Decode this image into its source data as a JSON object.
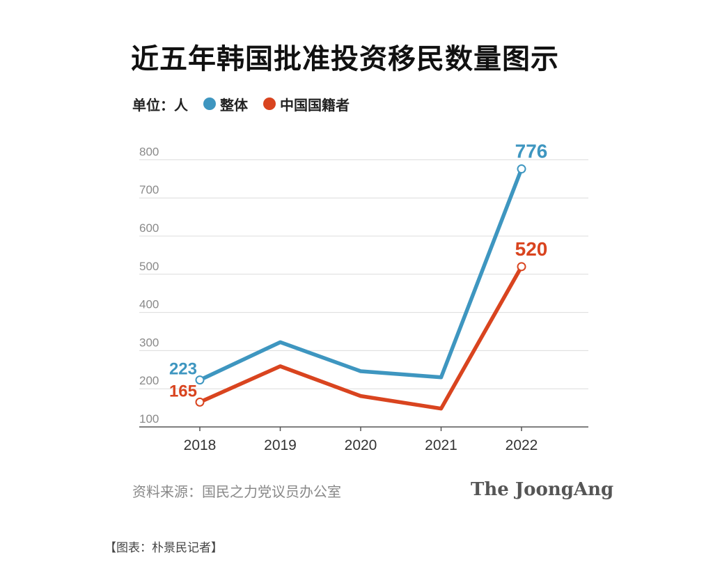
{
  "title": "近五年韩国批准投资移民数量图示",
  "legend": {
    "unit_label": "单位：人",
    "series": [
      {
        "name": "整体",
        "color": "#3e96c0"
      },
      {
        "name": "中国国籍者",
        "color": "#d9441f"
      }
    ]
  },
  "source": "资料来源：国民之力党议员办公室",
  "brand": "The JoongAng",
  "caption": "【图表：朴景民记者】",
  "chart_data": {
    "type": "line",
    "categories": [
      "2018",
      "2019",
      "2020",
      "2021",
      "2022"
    ],
    "y_ticks": [
      100,
      200,
      300,
      400,
      500,
      600,
      700,
      800
    ],
    "ylim": [
      100,
      830
    ],
    "grid": true,
    "series": [
      {
        "name": "整体",
        "color": "#3e96c0",
        "values": [
          223,
          322,
          246,
          230,
          776
        ],
        "labels": [
          "223",
          "",
          "",
          "",
          "776"
        ]
      },
      {
        "name": "中国国籍者",
        "color": "#d9441f",
        "values": [
          165,
          259,
          181,
          148,
          520
        ],
        "labels": [
          "165",
          "",
          "",
          "",
          "520"
        ]
      }
    ]
  }
}
